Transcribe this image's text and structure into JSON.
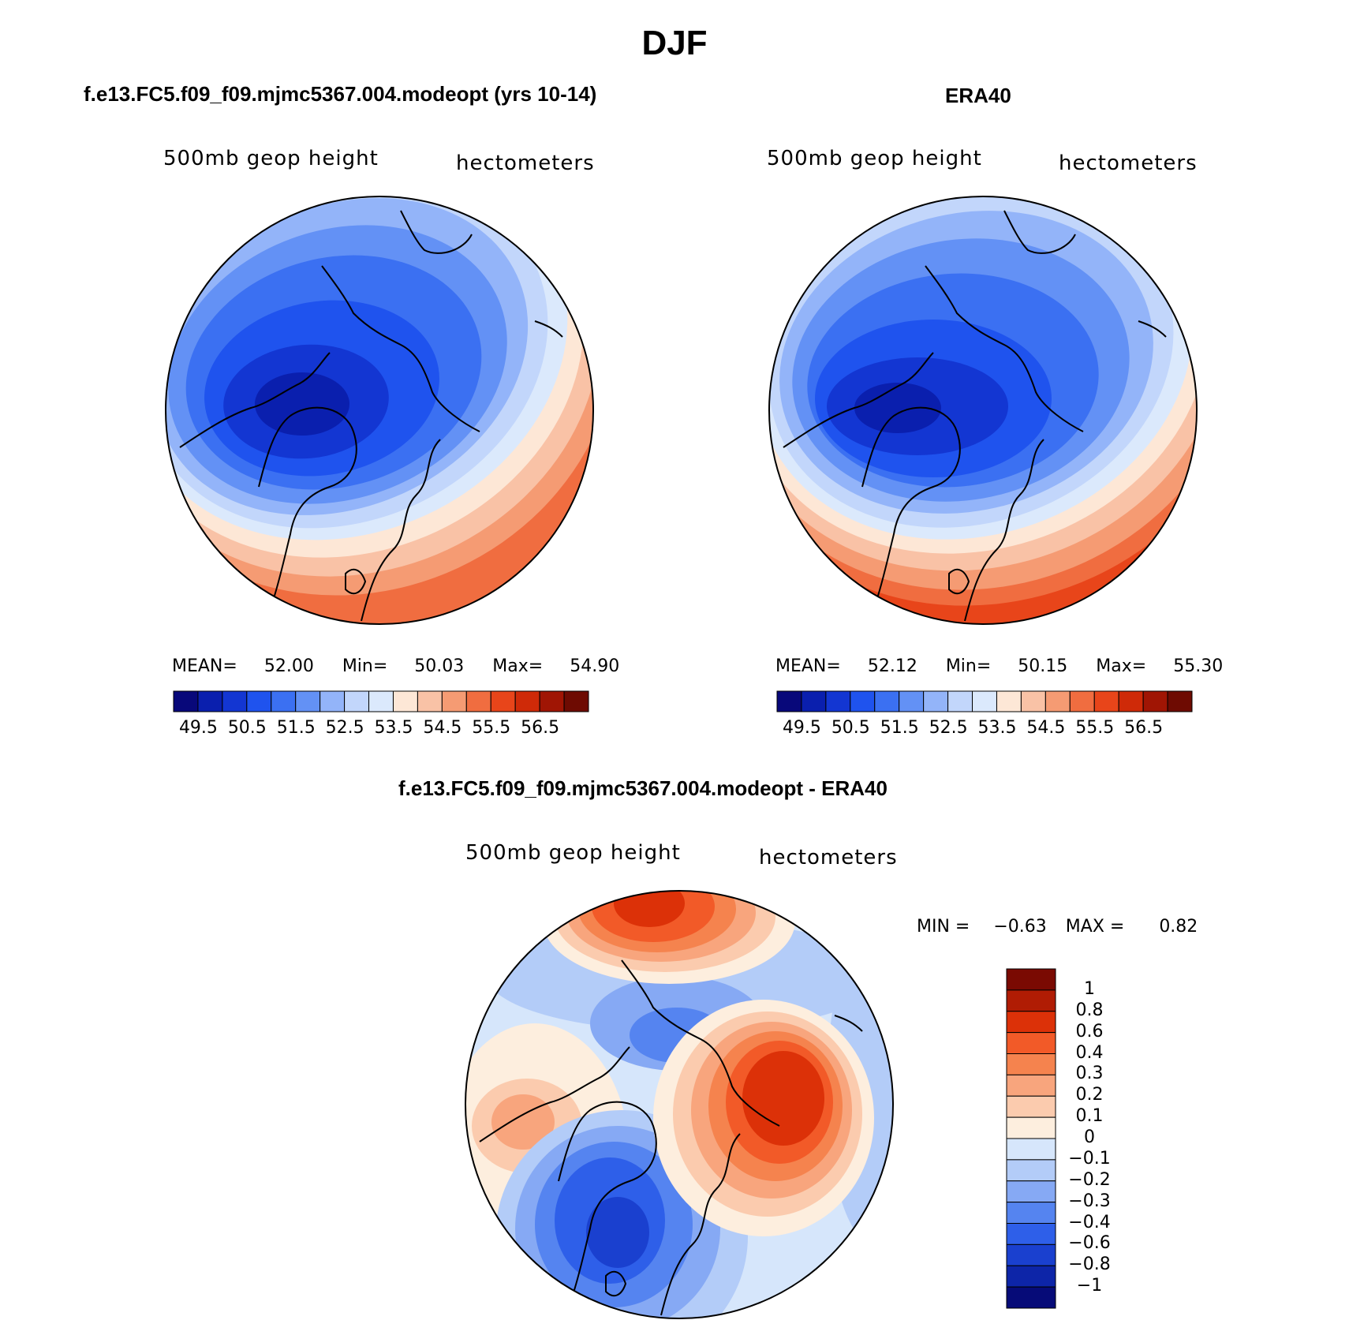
{
  "title": "DJF",
  "panels": {
    "model": {
      "title": "f.e13.FC5.f09_f09.mjmc5367.004.modeopt (yrs 10-14)",
      "variable": "500mb geop height",
      "units": "hectometers",
      "stats": {
        "mean_label": "MEAN=",
        "mean": "52.00",
        "min_label": "Min=",
        "min": "50.03",
        "max_label": "Max=",
        "max": "54.90"
      }
    },
    "obs": {
      "title": "ERA40",
      "variable": "500mb geop height",
      "units": "hectometers",
      "stats": {
        "mean_label": "MEAN=",
        "mean": "52.12",
        "min_label": "Min=",
        "min": "50.15",
        "max_label": "Max=",
        "max": "55.30"
      }
    },
    "diff": {
      "title": "f.e13.FC5.f09_f09.mjmc5367.004.modeopt - ERA40",
      "variable": "500mb geop height",
      "units": "hectometers",
      "stats": {
        "min_label": "MIN =",
        "min": "−0.63",
        "max_label": "MAX =",
        "max": "0.82"
      }
    }
  },
  "colorbar_abs": {
    "tick_labels": [
      "49.5",
      "50.5",
      "51.5",
      "52.5",
      "53.5",
      "54.5",
      "55.5",
      "56.5"
    ],
    "colors": [
      "#08087a",
      "#0a1fae",
      "#1336d2",
      "#1f53ee",
      "#3b70f2",
      "#6391f5",
      "#93b4f9",
      "#c2d6fb",
      "#dbe9fc",
      "#fde7d6",
      "#f9c2a6",
      "#f59b73",
      "#f06d40",
      "#e8451a",
      "#cf2a08",
      "#a01504",
      "#6e0b02"
    ]
  },
  "colorbar_diff": {
    "tick_labels": [
      "1",
      "0.8",
      "0.6",
      "0.4",
      "0.3",
      "0.2",
      "0.1",
      "0",
      "−0.1",
      "−0.2",
      "−0.3",
      "−0.4",
      "−0.6",
      "−0.8",
      "−1"
    ],
    "colors": [
      "#7a0a02",
      "#b01c04",
      "#dc3108",
      "#f25a28",
      "#f5834e",
      "#f8a57d",
      "#fbcbae",
      "#fdeede",
      "#d6e6fb",
      "#b3ccf8",
      "#86a9f4",
      "#5584f0",
      "#2e5fe9",
      "#1a40cf",
      "#0d25a8",
      "#060b78"
    ]
  },
  "chart_data": [
    {
      "type": "heatmap",
      "title": "f.e13.FC5.f09_f09.mjmc5367.004.modeopt (yrs 10-14)",
      "field": "500mb geop height",
      "units": "hectometers",
      "projection": "polar stereographic (Northern Hemisphere)",
      "contour_levels": [
        49.5,
        50,
        50.5,
        51,
        51.5,
        52,
        52.5,
        53,
        53.5,
        54,
        54.5,
        55,
        55.5,
        56,
        56.5
      ],
      "mean": 52.0,
      "min": 50.03,
      "max": 54.9
    },
    {
      "type": "heatmap",
      "title": "ERA40",
      "field": "500mb geop height",
      "units": "hectometers",
      "projection": "polar stereographic (Northern Hemisphere)",
      "contour_levels": [
        49.5,
        50,
        50.5,
        51,
        51.5,
        52,
        52.5,
        53,
        53.5,
        54,
        54.5,
        55,
        55.5,
        56,
        56.5
      ],
      "mean": 52.12,
      "min": 50.15,
      "max": 55.3
    },
    {
      "type": "heatmap",
      "title": "f.e13.FC5.f09_f09.mjmc5367.004.modeopt - ERA40",
      "field": "500mb geop height",
      "units": "hectometers",
      "projection": "polar stereographic (Northern Hemisphere)",
      "contour_levels": [
        -1,
        -0.8,
        -0.6,
        -0.4,
        -0.3,
        -0.2,
        -0.1,
        0,
        0.1,
        0.2,
        0.3,
        0.4,
        0.6,
        0.8,
        1
      ],
      "min": -0.63,
      "max": 0.82
    }
  ]
}
